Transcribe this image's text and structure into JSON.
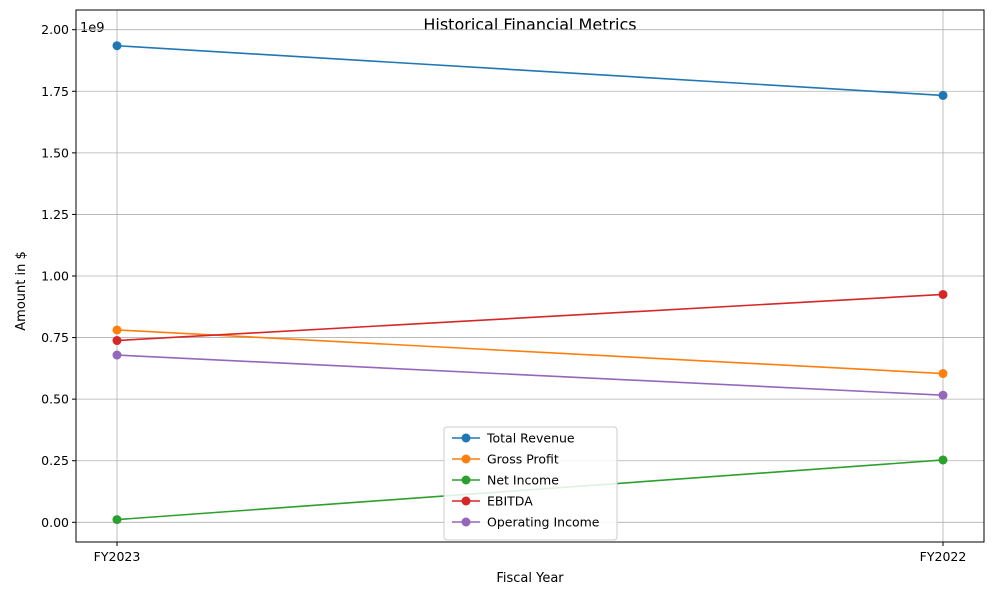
{
  "chart_data": {
    "type": "line",
    "title": "Historical Financial Metrics",
    "xlabel": "Fiscal Year",
    "ylabel": "Amount in $",
    "y_offset_label": "1e9",
    "categories": [
      "FY2023",
      "FY2022"
    ],
    "ylim": [
      -0.08,
      2.08
    ],
    "y_ticks": [
      0.0,
      0.25,
      0.5,
      0.75,
      1.0,
      1.25,
      1.5,
      1.75,
      2.0
    ],
    "y_tick_labels": [
      "0.00",
      "0.25",
      "0.50",
      "0.75",
      "1.00",
      "1.25",
      "1.50",
      "1.75",
      "2.00"
    ],
    "y_scale_multiplier": 1000000000,
    "grid": true,
    "legend_position": "bottom-center",
    "series": [
      {
        "name": "Total Revenue",
        "color": "#1f77b4",
        "values": [
          1.935,
          1.733
        ]
      },
      {
        "name": "Gross Profit",
        "color": "#ff7f0e",
        "values": [
          0.781,
          0.604
        ]
      },
      {
        "name": "Net Income",
        "color": "#2ca02c",
        "values": [
          0.011,
          0.253
        ]
      },
      {
        "name": "EBITDA",
        "color": "#d62728",
        "values": [
          0.738,
          0.925
        ]
      },
      {
        "name": "Operating Income",
        "color": "#9467bd",
        "values": [
          0.679,
          0.516
        ]
      }
    ]
  }
}
